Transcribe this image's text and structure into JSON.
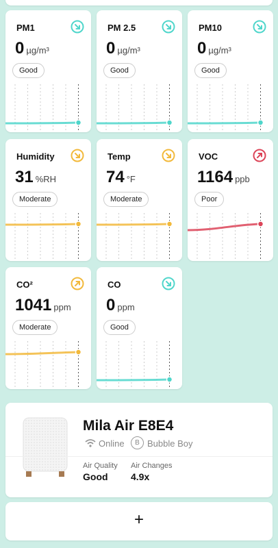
{
  "cards": [
    {
      "label": "PM1",
      "value": 0,
      "unit": "µg/m³",
      "status": "Good",
      "trend": "down",
      "color": "#4fd6cb"
    },
    {
      "label": "PM 2.5",
      "value": 0,
      "unit": "µg/m³",
      "status": "Good",
      "trend": "down",
      "color": "#4fd6cb"
    },
    {
      "label": "PM10",
      "value": 0,
      "unit": "µg/m³",
      "status": "Good",
      "trend": "down",
      "color": "#4fd6cb"
    },
    {
      "label": "Humidity",
      "value": 31,
      "unit": "%RH",
      "status": "Moderate",
      "trend": "down",
      "color": "#f2b93b"
    },
    {
      "label": "Temp",
      "value": 74,
      "unit": "°F",
      "status": "Moderate",
      "trend": "down",
      "color": "#f2b93b"
    },
    {
      "label": "VOC",
      "value": 1164,
      "unit": "ppb",
      "status": "Poor",
      "trend": "up",
      "color": "#dc4458"
    },
    {
      "label": "CO²",
      "value": 1041,
      "unit": "ppm",
      "status": "Moderate",
      "trend": "up",
      "color": "#f2b93b"
    },
    {
      "label": "CO",
      "value": 0,
      "unit": "ppm",
      "status": "Good",
      "trend": "down",
      "color": "#4fd6cb"
    }
  ],
  "device": {
    "name": "Mila Air E8E4",
    "connection": "Online",
    "room_badge": "B",
    "room": "Bubble Boy",
    "stats": [
      {
        "label": "Air Quality",
        "value": "Good"
      },
      {
        "label": "Air Changes",
        "value": "4.9x"
      }
    ]
  },
  "add_button": {
    "label": "+"
  }
}
